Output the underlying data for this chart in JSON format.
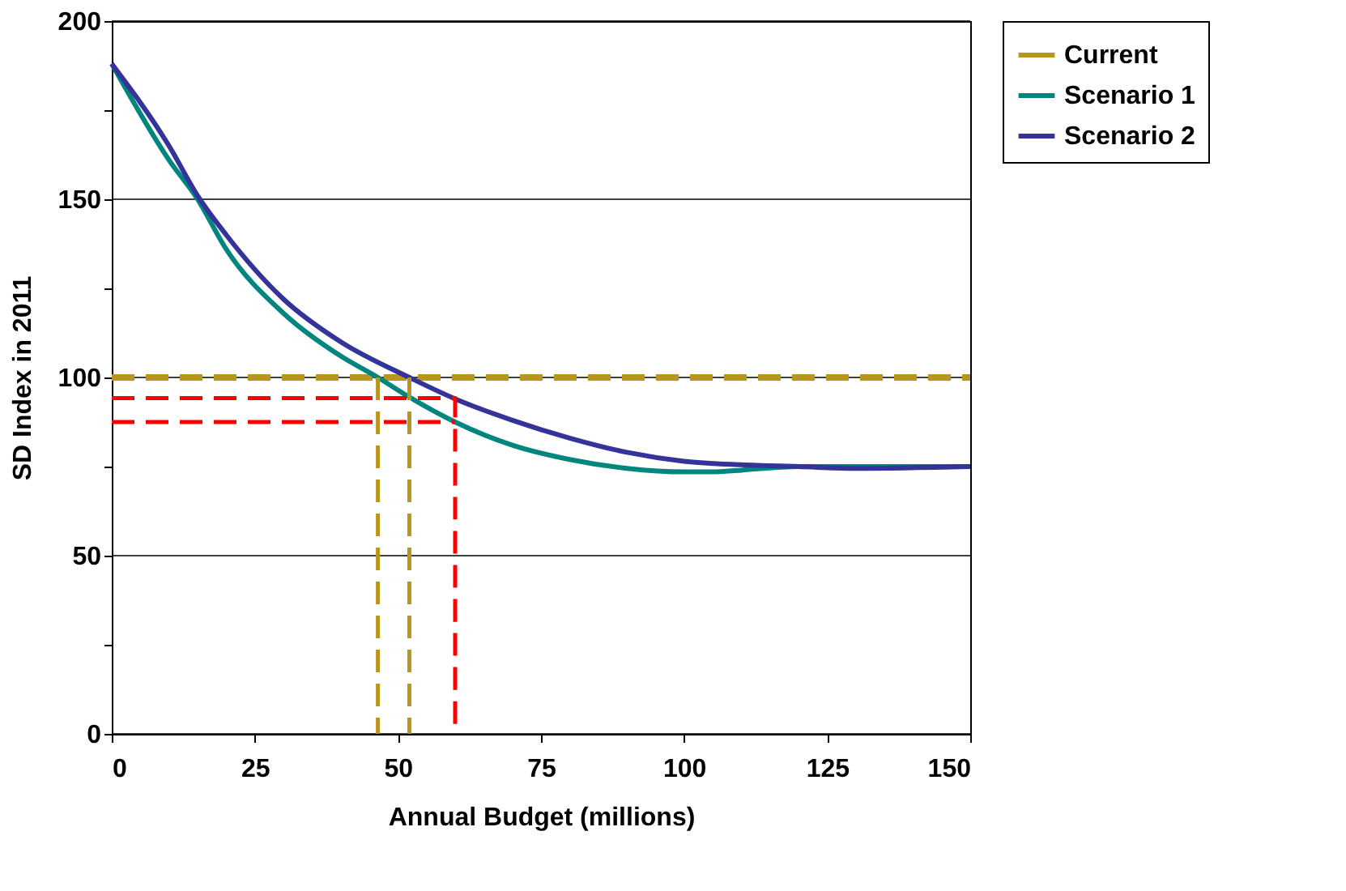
{
  "chart_data": {
    "type": "line",
    "xlabel": "Annual Budget (millions)",
    "ylabel": "SD Index in 2011",
    "xlim": [
      0,
      150
    ],
    "xticks": [
      0,
      25,
      50,
      75,
      100,
      125,
      150
    ],
    "ylim": [
      0,
      200
    ],
    "yticks": [
      0,
      {
        "value": 25,
        "label": null
      },
      50,
      {
        "value": 75,
        "label": null
      },
      100,
      {
        "value": 125,
        "label": null
      },
      150,
      {
        "value": 175,
        "label": null
      },
      200
    ],
    "grid": "y",
    "legend": "right",
    "series": [
      {
        "name": "Current",
        "color": "#b8961e",
        "line_style": "dashed",
        "x": [
          0,
          150
        ],
        "values": [
          100,
          100
        ]
      },
      {
        "name": "Scenario 1",
        "color": "#00857f",
        "x": [
          0,
          10,
          15,
          20,
          30,
          40,
          46.5,
          52,
          60,
          70,
          80,
          90,
          100,
          105,
          110,
          120,
          130,
          150
        ],
        "values": [
          188,
          161,
          150,
          136,
          118,
          106,
          100,
          94.5,
          87.5,
          81,
          77,
          74.5,
          73.5,
          73.5,
          74,
          75,
          75,
          75
        ]
      },
      {
        "name": "Scenario 2",
        "color": "#333399",
        "x": [
          0,
          10,
          15,
          20,
          30,
          40,
          52,
          60,
          70,
          80,
          90,
          100,
          110,
          120,
          130,
          150
        ],
        "values": [
          188,
          165,
          151,
          140,
          122,
          110,
          100,
          94,
          88,
          83,
          79,
          76.5,
          75.5,
          75,
          74.5,
          75
        ]
      },
      {
        "color": "#b8961e",
        "line_style": "dashed",
        "x": [
          46.5,
          46.5
        ],
        "values": [
          100,
          0
        ]
      },
      {
        "color": "#b8961e",
        "line_style": "dashed",
        "x": [
          52,
          52
        ],
        "values": [
          100,
          0
        ]
      },
      {
        "color": "#ff0000",
        "line_style": "dashed",
        "x": [
          0,
          60,
          60
        ],
        "values": [
          94.2,
          94.2,
          0
        ]
      },
      {
        "color": "#ff0000",
        "line_style": "dashed",
        "x": [
          0,
          60
        ],
        "values": [
          87.5,
          87.5
        ]
      }
    ]
  }
}
